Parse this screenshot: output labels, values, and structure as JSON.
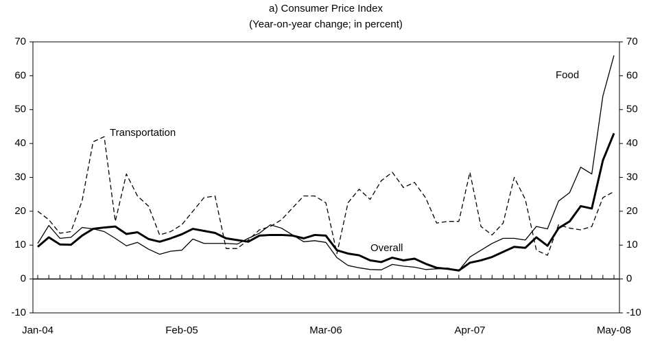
{
  "chart_data": {
    "type": "line",
    "title": "a) Consumer Price Index",
    "subtitle": "(Year-on-year change; in percent)",
    "categories": [
      "Jan-04",
      null,
      null,
      null,
      null,
      null,
      null,
      null,
      null,
      null,
      null,
      null,
      null,
      "Feb-05",
      null,
      null,
      null,
      null,
      null,
      null,
      null,
      null,
      null,
      null,
      null,
      null,
      "Mar-06",
      null,
      null,
      null,
      null,
      null,
      null,
      null,
      null,
      null,
      null,
      null,
      null,
      "Apr-07",
      null,
      null,
      null,
      null,
      null,
      null,
      null,
      null,
      null,
      null,
      null,
      null,
      "May-08"
    ],
    "series": [
      {
        "name": "Overall",
        "color": "#000000",
        "width": 3,
        "dashed": false,
        "values": [
          9.5,
          12.3,
          10.2,
          10.1,
          12.8,
          14.8,
          15.2,
          15.5,
          13.3,
          13.8,
          11.8,
          11,
          12,
          13.2,
          14.8,
          14.2,
          13.6,
          12,
          11.5,
          11,
          12.8,
          13,
          13,
          12.8,
          12,
          13,
          12.8,
          8.5,
          7.5,
          7,
          5.5,
          5,
          6.3,
          5.5,
          6,
          4.5,
          3.3,
          3,
          2.5,
          4.8,
          5.5,
          6.5,
          8,
          9.5,
          9.2,
          12.3,
          9.8,
          15,
          17,
          21.5,
          20.8,
          35,
          43
        ]
      },
      {
        "name": "Food",
        "color": "#000000",
        "width": 1.3,
        "dashed": false,
        "values": [
          10.5,
          15.8,
          12,
          12.3,
          15.2,
          14.8,
          14,
          12,
          9.8,
          10.8,
          8.8,
          7.3,
          8.2,
          8.5,
          11.8,
          10.5,
          10.5,
          10.5,
          10.3,
          12,
          13.5,
          16,
          15,
          13,
          11,
          11.3,
          10.8,
          6.3,
          4,
          3.3,
          2.8,
          2.7,
          4.3,
          3.8,
          3.5,
          2.8,
          3,
          3.2,
          2.5,
          6.5,
          8.5,
          10.5,
          12,
          12,
          11.5,
          15.5,
          14.8,
          23,
          25.5,
          33,
          31,
          54,
          66
        ]
      },
      {
        "name": "Transportation",
        "color": "#000000",
        "width": 1.3,
        "dashed": true,
        "values": [
          20,
          17.5,
          13.5,
          14,
          23,
          40.5,
          42,
          17,
          31,
          24.5,
          21.5,
          13,
          14,
          16,
          20,
          24,
          24.5,
          9,
          9,
          11.5,
          14.5,
          15.5,
          17.5,
          21,
          24.5,
          24.5,
          22.5,
          7.5,
          22.5,
          26.5,
          23.5,
          29,
          31.5,
          27,
          28.5,
          24,
          16.5,
          17,
          17,
          31.5,
          15.5,
          13,
          16.5,
          30,
          23.5,
          8.5,
          7,
          16,
          15,
          14.5,
          15.5,
          24,
          25.8
        ]
      }
    ],
    "ylim": [
      -10,
      70
    ],
    "yticks": [
      -10,
      0,
      10,
      20,
      30,
      40,
      50,
      60,
      70
    ],
    "y2lim": [
      -10,
      70
    ],
    "y2ticks": [
      -10,
      0,
      10,
      20,
      30,
      40,
      50,
      60,
      70
    ],
    "grid": false
  }
}
